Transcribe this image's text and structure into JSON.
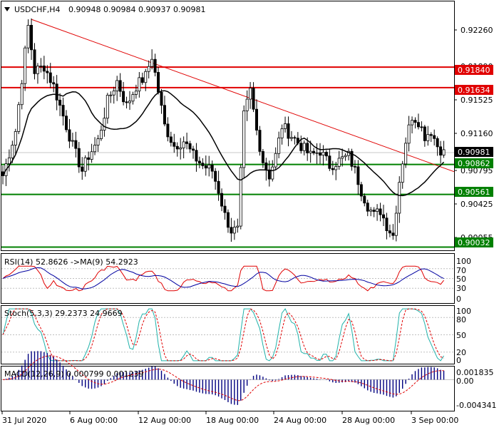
{
  "header": {
    "symbol_label": "USDCHF,H4",
    "ohlc_label": "0.90948 0.90984 0.90937 0.90981"
  },
  "price_axis": {
    "ticks": [
      "0.92260",
      "0.91890",
      "0.91525",
      "0.91160",
      "0.90795",
      "0.90425",
      "0.90055"
    ]
  },
  "time_axis": {
    "labels": [
      "31 Jul 2020",
      "6 Aug 00:00",
      "12 Aug 00:00",
      "18 Aug 00:00",
      "24 Aug 00:00",
      "28 Aug 00:00",
      "3 Sep 00:00"
    ]
  },
  "levels": [
    {
      "label": "0.91840",
      "value": 0.9184,
      "color": "#e00000"
    },
    {
      "label": "0.91634",
      "value": 0.91634,
      "color": "#e00000"
    },
    {
      "label": "0.90862",
      "value": 0.90862,
      "color": "#008000"
    },
    {
      "label": "0.90561",
      "value": 0.90561,
      "color": "#008000"
    },
    {
      "label": "0.90032",
      "value": 0.90032,
      "color": "#008000"
    }
  ],
  "current_price": {
    "label": "0.90981",
    "value": 0.90981
  },
  "indicators": {
    "rsi": {
      "label": "RSI(14) 52.8626  ->MA(9) 54.2923",
      "ticks": [
        "100",
        "70",
        "50",
        "30",
        "0"
      ]
    },
    "stoch": {
      "label": "Stoch(5,3,3) 29.2373 24.9669",
      "ticks": [
        "100",
        "80",
        "50",
        "20",
        "0"
      ]
    },
    "macd": {
      "label": "MACD(12,26,9) 0.000799 0.001239",
      "ticks": [
        "0.001835",
        "0.00",
        "-0.004341"
      ]
    }
  },
  "colors": {
    "candle": "#000000",
    "trendline": "#e00000",
    "ma_line": "#000000",
    "rsi_line": "#e00000",
    "rsi_ma_line": "#0000a0",
    "stoch_main": "#20b2aa",
    "stoch_signal": "#e00000",
    "macd_hist": "#000080",
    "macd_signal": "#e00000",
    "resistance": "#e00000",
    "support": "#008000"
  },
  "chart_data": {
    "type": "candlestick",
    "symbol": "USDCHF",
    "timeframe": "H4",
    "ylim": [
      0.9,
      0.925
    ],
    "close_path": [
      [
        0,
        0.9075
      ],
      [
        4,
        0.912
      ],
      [
        8,
        0.9225
      ],
      [
        10,
        0.918
      ],
      [
        13,
        0.9185
      ],
      [
        16,
        0.9165
      ],
      [
        19,
        0.9135
      ],
      [
        22,
        0.9105
      ],
      [
        25,
        0.908
      ],
      [
        27,
        0.9095
      ],
      [
        30,
        0.911
      ],
      [
        33,
        0.915
      ],
      [
        36,
        0.917
      ],
      [
        39,
        0.9145
      ],
      [
        42,
        0.9165
      ],
      [
        45,
        0.9175
      ],
      [
        47,
        0.9195
      ],
      [
        49,
        0.916
      ],
      [
        51,
        0.9125
      ],
      [
        54,
        0.9105
      ],
      [
        57,
        0.911
      ],
      [
        60,
        0.9095
      ],
      [
        63,
        0.9085
      ],
      [
        66,
        0.908
      ],
      [
        68,
        0.906
      ],
      [
        70,
        0.9035
      ],
      [
        72,
        0.902
      ],
      [
        74,
        0.902
      ],
      [
        76,
        0.9135
      ],
      [
        78,
        0.916
      ],
      [
        80,
        0.912
      ],
      [
        82,
        0.909
      ],
      [
        84,
        0.9075
      ],
      [
        86,
        0.9095
      ],
      [
        88,
        0.9125
      ],
      [
        91,
        0.9115
      ],
      [
        94,
        0.9105
      ],
      [
        97,
        0.9095
      ],
      [
        100,
        0.91
      ],
      [
        103,
        0.9085
      ],
      [
        106,
        0.909
      ],
      [
        109,
        0.9095
      ],
      [
        111,
        0.908
      ],
      [
        113,
        0.906
      ],
      [
        115,
        0.9045
      ],
      [
        117,
        0.9035
      ],
      [
        119,
        0.904
      ],
      [
        121,
        0.9025
      ],
      [
        123,
        0.9015
      ],
      [
        125,
        0.907
      ],
      [
        127,
        0.911
      ],
      [
        129,
        0.9135
      ],
      [
        131,
        0.913
      ],
      [
        133,
        0.9115
      ],
      [
        135,
        0.912
      ],
      [
        137,
        0.9105
      ],
      [
        139,
        0.9098
      ]
    ],
    "indicators": {
      "ma": {
        "period": 20
      },
      "rsi": {
        "period": 14,
        "ma": 9,
        "value": 52.8626,
        "ma_value": 54.2923,
        "levels": [
          70,
          50,
          30
        ]
      },
      "stoch": {
        "k": 5,
        "d": 3,
        "slowing": 3,
        "main": 29.2373,
        "signal": 24.9669,
        "levels": [
          80,
          50,
          20
        ]
      },
      "macd": {
        "fast": 12,
        "slow": 26,
        "signal": 9,
        "main": 0.000799,
        "signal_value": 0.001239,
        "range": [
          -0.004341,
          0.001835
        ]
      }
    }
  }
}
